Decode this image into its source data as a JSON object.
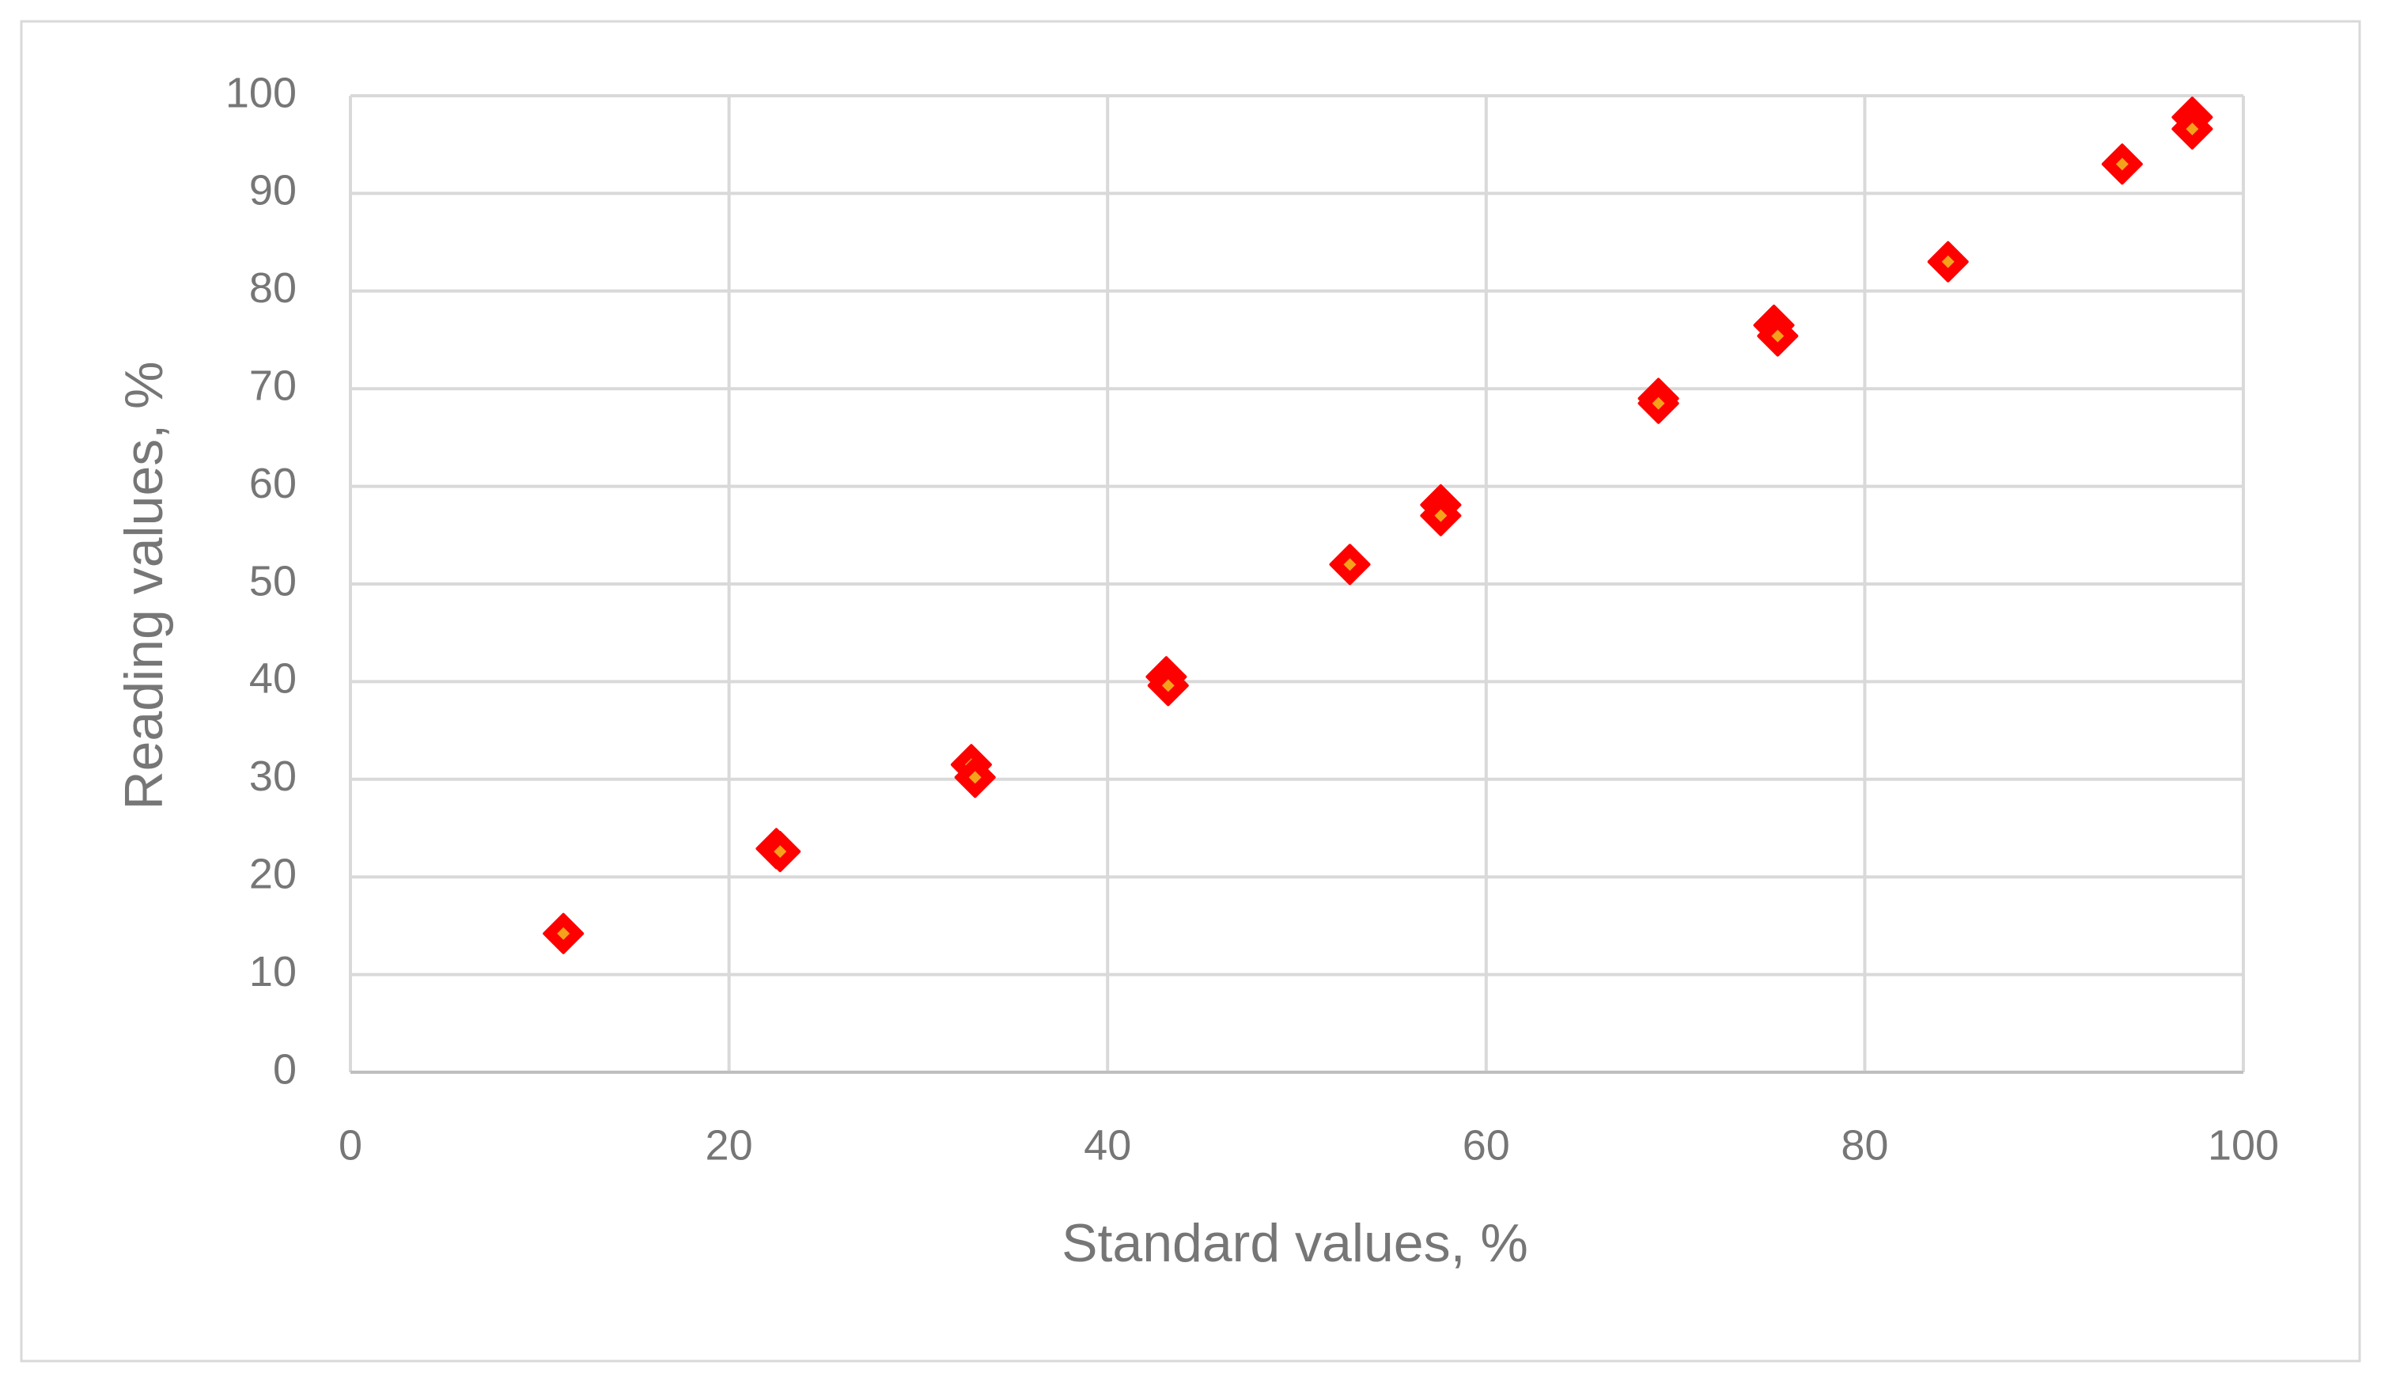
{
  "chart_data": {
    "type": "scatter",
    "x_label": "Standard values, %",
    "y_label": "Reading values, %",
    "x": [
      11.25,
      22.5,
      22.7,
      32.8,
      33.0,
      43.1,
      43.2,
      52.8,
      57.6,
      57.6,
      69.1,
      69.1,
      75.2,
      75.4,
      84.4,
      93.6,
      97.3,
      97.3
    ],
    "values": [
      14.2,
      22.9,
      22.6,
      31.5,
      30.2,
      40.5,
      39.6,
      52.0,
      58.1,
      57.0,
      69.0,
      68.5,
      76.5,
      75.4,
      83.0,
      93.0,
      97.8,
      96.6
    ],
    "color": "#ff0000",
    "xlim": [
      0,
      100
    ],
    "xticks": [
      0,
      20,
      40,
      60,
      80,
      100
    ],
    "ylim": [
      0,
      100
    ],
    "yticks": [
      0,
      10,
      20,
      30,
      40,
      50,
      60,
      70,
      80,
      90,
      100
    ],
    "grid": true
  }
}
